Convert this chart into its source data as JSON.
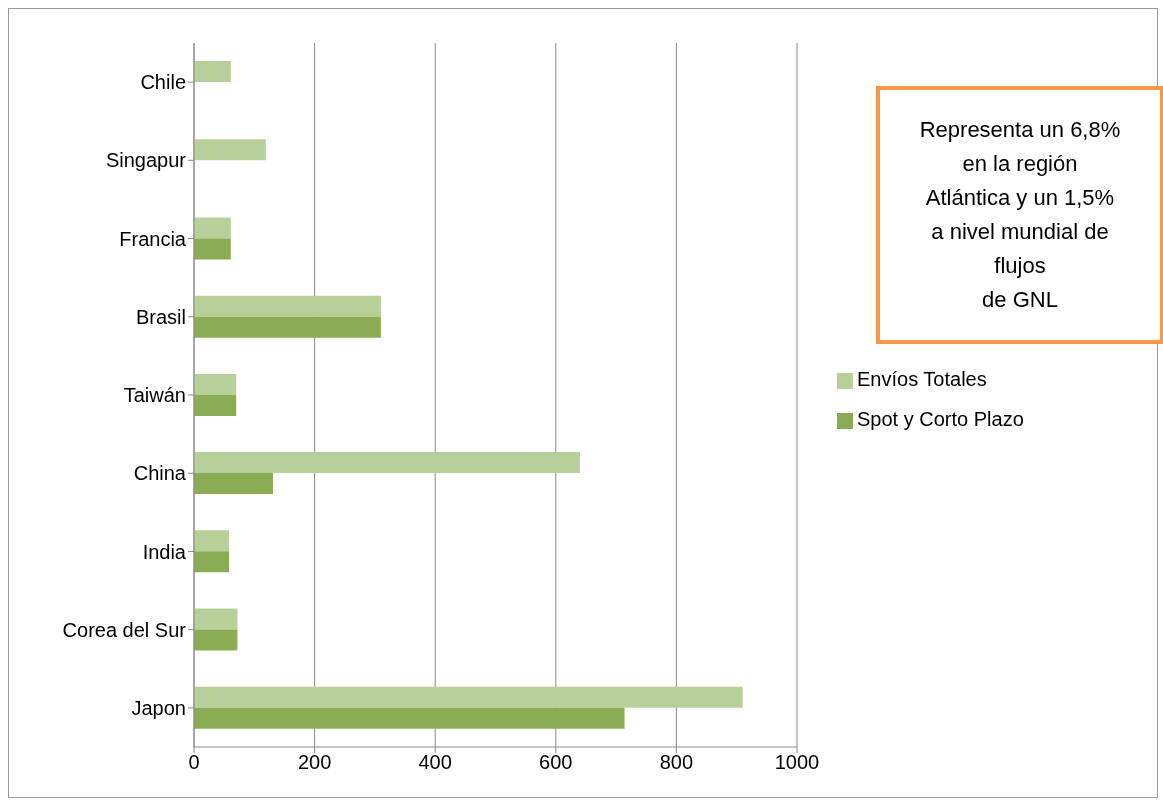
{
  "chart_data": {
    "type": "bar",
    "orientation": "horizontal",
    "categories": [
      "Chile",
      "Singapur",
      "Francia",
      "Brasil",
      "Taiwán",
      "China",
      "India",
      "Corea del Sur",
      "Japon"
    ],
    "series": [
      {
        "name": "Envíos Totales",
        "color": "#b7cf98",
        "values": [
          61,
          119,
          61,
          310,
          70,
          640,
          58,
          72,
          910
        ]
      },
      {
        "name": "Spot y Corto Plazo",
        "color": "#8aac53",
        "values": [
          null,
          null,
          61,
          310,
          70,
          131,
          58,
          72,
          714
        ]
      }
    ],
    "xlim": [
      0,
      1000
    ],
    "xticks": [
      0,
      200,
      400,
      600,
      800,
      1000
    ],
    "grid": "x",
    "legend": "right",
    "annotations": [
      "Representa un 6,8%\nen la región\nAtlántica y un 1,5%\na nivel mundial de\nflujos\nde GNL"
    ]
  }
}
